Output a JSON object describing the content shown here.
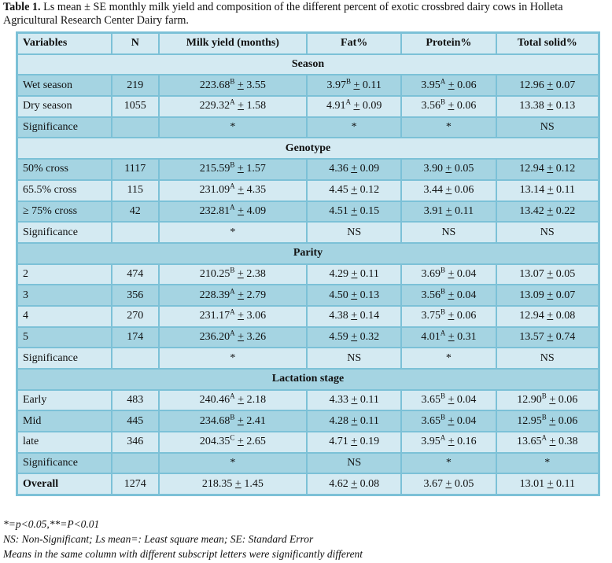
{
  "caption": {
    "label": "Table 1.",
    "text": " Ls mean ± SE monthly milk yield and composition of the different percent of exotic crossbred dairy cows in Holleta Agricultural Research Center Dairy farm."
  },
  "pm": "+",
  "headers": [
    "Variables",
    "N",
    "Milk yield (months)",
    "Fat%",
    "Protein%",
    "Total solid%"
  ],
  "rows": [
    {
      "section": "Season"
    },
    {
      "label": "Wet season",
      "n": "219",
      "cells": [
        {
          "v": "223.68",
          "s": "B",
          "e": "3.55"
        },
        {
          "v": "3.97",
          "s": "B",
          "e": "0.11"
        },
        {
          "v": "3.95",
          "s": "A",
          "e": "0.06"
        },
        {
          "v": "12.96",
          "s": "",
          "e": "0.07"
        }
      ]
    },
    {
      "label": "Dry season",
      "n": "1055",
      "cells": [
        {
          "v": "229.32",
          "s": "A",
          "e": "1.58"
        },
        {
          "v": "4.91",
          "s": "A",
          "e": "0.09"
        },
        {
          "v": "3.56",
          "s": "B",
          "e": "0.06"
        },
        {
          "v": "13.38",
          "s": "",
          "e": "0.13"
        }
      ]
    },
    {
      "label": "Significance",
      "n": "",
      "sig": [
        "*",
        "*",
        "*",
        "NS"
      ]
    },
    {
      "section": "Genotype"
    },
    {
      "label": "50% cross",
      "n": "1117",
      "cells": [
        {
          "v": "215.59",
          "s": "B",
          "e": "1.57"
        },
        {
          "v": "4.36",
          "s": "",
          "e": "0.09"
        },
        {
          "v": "3.90",
          "s": "",
          "e": "0.05"
        },
        {
          "v": "12.94",
          "s": "",
          "e": "0.12"
        }
      ]
    },
    {
      "label": "65.5% cross",
      "n": "115",
      "cells": [
        {
          "v": "231.09",
          "s": "A",
          "e": "4.35"
        },
        {
          "v": "4.45",
          "s": "",
          "e": "0.12"
        },
        {
          "v": "3.44",
          "s": "",
          "e": "0.06"
        },
        {
          "v": "13.14",
          "s": "",
          "e": "0.11"
        }
      ]
    },
    {
      "label": "≥ 75% cross",
      "n": "42",
      "cells": [
        {
          "v": "232.81",
          "s": "A",
          "e": "4.09"
        },
        {
          "v": "4.51",
          "s": "",
          "e": "0.15"
        },
        {
          "v": "3.91",
          "s": "",
          "e": "0.11"
        },
        {
          "v": "13.42",
          "s": "",
          "e": "0.22"
        }
      ]
    },
    {
      "label": "Significance",
      "n": "",
      "sig": [
        "*",
        "NS",
        "NS",
        "NS"
      ]
    },
    {
      "section": "Parity"
    },
    {
      "label": "2",
      "n": "474",
      "cells": [
        {
          "v": "210.25",
          "s": "B",
          "e": "2.38"
        },
        {
          "v": "4.29",
          "s": "",
          "e": "0.11"
        },
        {
          "v": "3.69",
          "s": "B",
          "e": "0.04"
        },
        {
          "v": "13.07",
          "s": "",
          "e": "0.05"
        }
      ]
    },
    {
      "label": "3",
      "n": "356",
      "cells": [
        {
          "v": "228.39",
          "s": "A",
          "e": "2.79"
        },
        {
          "v": "4.50",
          "s": "",
          "e": "0.13"
        },
        {
          "v": "3.56",
          "s": "B",
          "e": "0.04"
        },
        {
          "v": "13.09",
          "s": "",
          "e": "0.07"
        }
      ]
    },
    {
      "label": "4",
      "n": "270",
      "cells": [
        {
          "v": "231.17",
          "s": "A",
          "e": "3.06"
        },
        {
          "v": "4.38",
          "s": "",
          "e": "0.14"
        },
        {
          "v": "3.75",
          "s": "B",
          "e": "0.06"
        },
        {
          "v": "12.94",
          "s": "",
          "e": "0.08"
        }
      ]
    },
    {
      "label": "5",
      "n": "174",
      "cells": [
        {
          "v": "236.20",
          "s": "A",
          "e": "3.26"
        },
        {
          "v": "4.59",
          "s": "",
          "e": "0.32"
        },
        {
          "v": "4.01",
          "s": "A",
          "e": "0.31"
        },
        {
          "v": "13.57",
          "s": "",
          "e": "0.74"
        }
      ]
    },
    {
      "label": "Significance",
      "n": "",
      "sig": [
        "*",
        "NS",
        "*",
        "NS"
      ]
    },
    {
      "section": "Lactation stage"
    },
    {
      "label": "Early",
      "n": "483",
      "cells": [
        {
          "v": "240.46",
          "s": "A",
          "e": "2.18"
        },
        {
          "v": "4.33",
          "s": "",
          "e": "0.11"
        },
        {
          "v": "3.65",
          "s": "B",
          "e": "0.04"
        },
        {
          "v": "12.90",
          "s": "B",
          "e": "0.06"
        }
      ]
    },
    {
      "label": "Mid",
      "n": "445",
      "cells": [
        {
          "v": "234.68",
          "s": "B",
          "e": "2.41"
        },
        {
          "v": "4.28",
          "s": "",
          "e": "0.11"
        },
        {
          "v": "3.65",
          "s": "B",
          "e": "0.04"
        },
        {
          "v": "12.95",
          "s": "B",
          "e": "0.06"
        }
      ]
    },
    {
      "label": "late",
      "n": "346",
      "cells": [
        {
          "v": "204.35",
          "s": "C",
          "e": "2.65"
        },
        {
          "v": "4.71",
          "s": "",
          "e": "0.19"
        },
        {
          "v": "3.95",
          "s": "A",
          "e": "0.16"
        },
        {
          "v": "13.65",
          "s": "A",
          "e": "0.38"
        }
      ]
    },
    {
      "label": "Significance",
      "n": "",
      "sig": [
        "*",
        "NS",
        "*",
        "*"
      ]
    },
    {
      "label": "Overall",
      "n": "1274",
      "overall": true,
      "cells": [
        {
          "v": "218.35",
          "s": "",
          "e": "1.45"
        },
        {
          "v": "4.62",
          "s": "",
          "e": "0.08"
        },
        {
          "v": "3.67",
          "s": "",
          "e": "0.05"
        },
        {
          "v": "13.01",
          "s": "",
          "e": "0.11"
        }
      ]
    }
  ],
  "notes": [
    "*=p<0.05,**=P<0.01",
    "NS: Non-Significant; Ls mean=: Least square mean; SE: Standard Error",
    "Means in the same column with different subscript letters were significantly different"
  ]
}
